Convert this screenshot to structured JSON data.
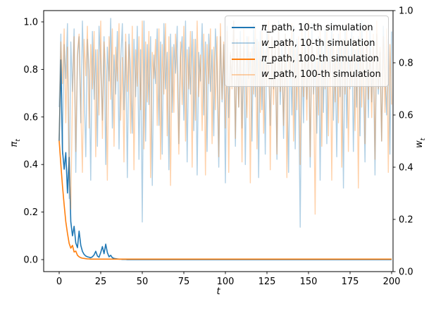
{
  "figure": {
    "background": "#ffffff"
  },
  "chart_data": {
    "type": "line",
    "title": "",
    "xlabel": {
      "symbol": "t"
    },
    "ylabel_left": {
      "symbol": "π",
      "sub": "t"
    },
    "ylabel_right": {
      "symbol": "w",
      "sub": "t"
    },
    "xlim": [
      -9.3,
      200.9
    ],
    "ylim_left": [
      -0.05,
      1.05
    ],
    "ylim_right": [
      0.0,
      1.0
    ],
    "grid": false,
    "legend_position": "upper right",
    "x_ticks": {
      "values": [
        0,
        25,
        50,
        75,
        100,
        125,
        150,
        175,
        200
      ],
      "labels": [
        "0",
        "25",
        "50",
        "75",
        "100",
        "125",
        "150",
        "175",
        "200"
      ]
    },
    "y_ticks_left": {
      "values": [
        0.0,
        0.2,
        0.4,
        0.6,
        0.8,
        1.0
      ],
      "labels": [
        "0.0",
        "0.2",
        "0.4",
        "0.6",
        "0.8",
        "1.0"
      ]
    },
    "y_ticks_right": {
      "values": [
        0.0,
        0.2,
        0.4,
        0.6,
        0.8,
        1.0
      ],
      "labels": [
        "0.0",
        "0.2",
        "0.4",
        "0.6",
        "0.8",
        "1.0"
      ]
    },
    "x_count": 201,
    "legend": {
      "items": [
        {
          "symbol": "π",
          "rest": "_path, 10-th simulation",
          "color": "#1f77b4"
        },
        {
          "symbol": "w",
          "rest": "_path, 10-th simulation",
          "color": "rgba(31,119,180,0.35)"
        },
        {
          "symbol": "π",
          "rest": "_path, 100-th simulation",
          "color": "#ff7f0e"
        },
        {
          "symbol": "w",
          "rest": "_path, 100-th simulation",
          "color": "rgba(255,127,14,0.35)"
        }
      ]
    },
    "series": [
      {
        "name": "pi_path_10th_simulation",
        "axis": "left",
        "color": "#1f77b4",
        "line_width": 1.6,
        "values": [
          0.5,
          0.84,
          0.46,
          0.38,
          0.45,
          0.28,
          0.43,
          0.16,
          0.1,
          0.14,
          0.07,
          0.05,
          0.12,
          0.06,
          0.035,
          0.022,
          0.015,
          0.012,
          0.01,
          0.008,
          0.012,
          0.02,
          0.035,
          0.015,
          0.01,
          0.03,
          0.055,
          0.025,
          0.065,
          0.03,
          0.012,
          0.018,
          0.008,
          0.005,
          0.004,
          0.003,
          0.002,
          0.002,
          0.001,
          0.001,
          0.001,
          0.0,
          0.0,
          0.0,
          0.0
        ]
      },
      {
        "name": "w_path_10th_simulation",
        "axis": "right",
        "color": "rgba(31,119,180,0.35)",
        "line_width": 1.4,
        "values": [
          0.63,
          0.91,
          0.45,
          0.87,
          0.74,
          0.95,
          0.28,
          0.88,
          0.69,
          0.93,
          0.38,
          0.82,
          0.9,
          0.57,
          0.96,
          0.71,
          0.44,
          0.89,
          0.77,
          0.35,
          0.92,
          0.66,
          0.85,
          0.48,
          0.94,
          0.79,
          0.58,
          0.9,
          0.41,
          0.86,
          0.73,
          0.97,
          0.55,
          0.83,
          0.68,
          0.92,
          0.47,
          0.8,
          0.95,
          0.62,
          0.88,
          0.36,
          0.91,
          0.75,
          0.53,
          0.89,
          0.67,
          0.94,
          0.43,
          0.85,
          0.19,
          0.96,
          0.5,
          0.87,
          0.64,
          0.9,
          0.33,
          0.83,
          0.72,
          0.93,
          0.56,
          0.88,
          0.45,
          0.95,
          0.7,
          0.84,
          0.39,
          0.91,
          0.61,
          0.87,
          0.76,
          0.94,
          0.49,
          0.82,
          0.9,
          0.58,
          0.96,
          0.42,
          0.86,
          0.68,
          0.92,
          0.54,
          0.89,
          0.37,
          0.84,
          0.73,
          0.95,
          0.6,
          0.88,
          0.46,
          0.91,
          0.69,
          0.85,
          0.52,
          0.93,
          0.77,
          0.4,
          0.9,
          0.65,
          0.87,
          0.34,
          0.94,
          0.59,
          0.83,
          0.71,
          0.96,
          0.48,
          0.88,
          0.63,
          0.92,
          0.55,
          0.86,
          0.41,
          0.9,
          0.74,
          0.84,
          0.5,
          0.95,
          0.67,
          0.89,
          0.36,
          0.92,
          0.62,
          0.87,
          0.45,
          0.93,
          0.78,
          0.56,
          0.9,
          0.7,
          0.85,
          0.43,
          0.96,
          0.64,
          0.88,
          0.51,
          0.91,
          0.75,
          0.38,
          0.86,
          0.6,
          0.94,
          0.47,
          0.89,
          0.72,
          0.17,
          0.84,
          0.57,
          0.92,
          0.66,
          0.87,
          0.4,
          0.95,
          0.68,
          0.82,
          0.53,
          0.9,
          0.35,
          0.88,
          0.61,
          0.93,
          0.49,
          0.86,
          0.74,
          0.96,
          0.58,
          0.83,
          0.44,
          0.91,
          0.67,
          0.89,
          0.32,
          0.94,
          0.55,
          0.87,
          0.7,
          0.92,
          0.46,
          0.85,
          0.63,
          0.9,
          0.52,
          0.96,
          0.73,
          0.42,
          0.88,
          0.59,
          0.93,
          0.65,
          0.86,
          0.37,
          0.91,
          0.68,
          0.84,
          0.5,
          0.94,
          0.76,
          0.6,
          0.89,
          0.45,
          0.92
        ]
      },
      {
        "name": "pi_path_100th_simulation",
        "axis": "left",
        "color": "#ff7f0e",
        "line_width": 1.6,
        "values": [
          0.5,
          0.4,
          0.31,
          0.23,
          0.16,
          0.11,
          0.068,
          0.048,
          0.06,
          0.032,
          0.036,
          0.018,
          0.012,
          0.008,
          0.006,
          0.005,
          0.004,
          0.003,
          0.003,
          0.002
        ]
      },
      {
        "name": "w_path_100th_simulation",
        "axis": "right",
        "color": "rgba(255,127,14,0.35)",
        "line_width": 1.4,
        "values": [
          0.5,
          0.88,
          0.72,
          0.93,
          0.57,
          0.86,
          0.41,
          0.24,
          0.68,
          0.9,
          0.46,
          0.84,
          0.91,
          0.63,
          0.38,
          0.89,
          0.75,
          0.94,
          0.55,
          0.87,
          0.7,
          0.92,
          0.44,
          0.85,
          0.6,
          0.96,
          0.51,
          0.88,
          0.77,
          0.35,
          0.9,
          0.66,
          0.93,
          0.48,
          0.86,
          0.73,
          0.95,
          0.58,
          0.82,
          0.42,
          0.91,
          0.69,
          0.87,
          0.53,
          0.94,
          0.39,
          0.85,
          0.71,
          0.9,
          0.62,
          0.96,
          0.47,
          0.88,
          0.65,
          0.92,
          0.36,
          0.84,
          0.74,
          0.89,
          0.56,
          0.93,
          0.43,
          0.87,
          0.68,
          0.95,
          0.52,
          0.9,
          0.33,
          0.86,
          0.61,
          0.91,
          0.76,
          0.45,
          0.88,
          0.64,
          0.94,
          0.5,
          0.85,
          0.7,
          0.92,
          0.4,
          0.89,
          0.58,
          0.96,
          0.67,
          0.83,
          0.54,
          0.91,
          0.37,
          0.87,
          0.72,
          0.93,
          0.49,
          0.86,
          0.62,
          0.9,
          0.44,
          0.95,
          0.66,
          0.88,
          0.55,
          0.92,
          0.38,
          0.84,
          0.7,
          0.96,
          0.51,
          0.89,
          0.63,
          0.87,
          0.42,
          0.93,
          0.75,
          0.59,
          0.9,
          0.34,
          0.86,
          0.68,
          0.94,
          0.47,
          0.88,
          0.61,
          0.92,
          0.53,
          0.85,
          0.71,
          0.96,
          0.39,
          0.9,
          0.64,
          0.87,
          0.45,
          0.93,
          0.69,
          0.82,
          0.56,
          0.91,
          0.36,
          0.88,
          0.74,
          0.95,
          0.5,
          0.86,
          0.62,
          0.9,
          0.41,
          0.93,
          0.67,
          0.85,
          0.58,
          0.96,
          0.44,
          0.89,
          0.73,
          0.22,
          0.87,
          0.6,
          0.92,
          0.48,
          0.84,
          0.7,
          0.94,
          0.52,
          0.88,
          0.35,
          0.91,
          0.65,
          0.86,
          0.57,
          0.93,
          0.4,
          0.89,
          0.68,
          0.95,
          0.46,
          0.83,
          0.71,
          0.9,
          0.54,
          0.87,
          0.32,
          0.92,
          0.63,
          0.88,
          0.49,
          0.94,
          0.66,
          0.85,
          0.59,
          0.91,
          0.43,
          0.96,
          0.7,
          0.86,
          0.5,
          0.9,
          0.61,
          0.93,
          0.38,
          0.87,
          0.64
        ]
      }
    ]
  }
}
